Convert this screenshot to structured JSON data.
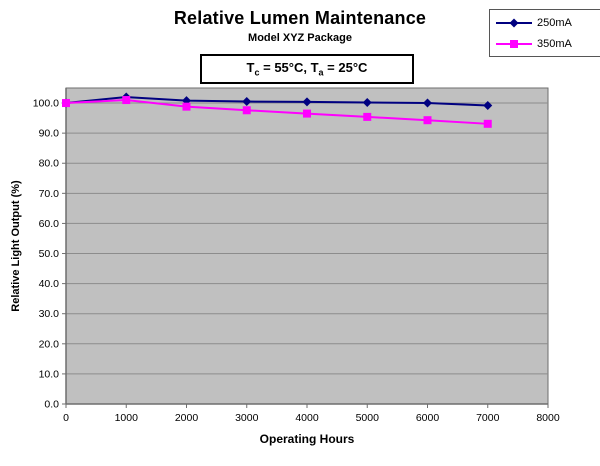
{
  "chart": {
    "title": "Relative Lumen Maintenance",
    "subtitle": "Model XYZ Package"
  },
  "annotation": {
    "t1": "T",
    "sub1": "c",
    "mid": " = 55°C, T",
    "sub2": "a",
    "end": " = 25°C"
  },
  "chart_data": {
    "type": "line",
    "title": "Relative Lumen Maintenance",
    "subtitle": "Model XYZ Package",
    "xlabel": "Operating Hours",
    "ylabel": "Relative Light Output (%)",
    "x": [
      0,
      1000,
      2000,
      3000,
      4000,
      5000,
      6000,
      7000
    ],
    "series": [
      {
        "name": "250mA",
        "color": "#000080",
        "marker": "diamond",
        "values": [
          100.0,
          102.0,
          100.8,
          100.5,
          100.4,
          100.2,
          100.0,
          99.2
        ]
      },
      {
        "name": "350mA",
        "color": "#ff00ff",
        "marker": "square",
        "values": [
          100.0,
          101.0,
          98.8,
          97.6,
          96.5,
          95.4,
          94.3,
          93.1
        ]
      }
    ],
    "xlim": [
      0,
      8000
    ],
    "ylim": [
      0,
      105
    ],
    "x_tick_values": [
      0,
      1000,
      2000,
      3000,
      4000,
      5000,
      6000,
      7000,
      8000
    ],
    "x_tick_labels": [
      "0",
      "1000",
      "2000",
      "3000",
      "4000",
      "5000",
      "6000",
      "7000",
      "8000"
    ],
    "y_tick_values": [
      0,
      10,
      20,
      30,
      40,
      50,
      60,
      70,
      80,
      90,
      100
    ],
    "y_tick_labels": [
      "0.0",
      "10.0",
      "20.0",
      "30.0",
      "40.0",
      "50.0",
      "60.0",
      "70.0",
      "80.0",
      "90.0",
      "100.0"
    ],
    "grid": true,
    "legend_position": "top-right",
    "plot_bg": "#c0c0c0",
    "gridline_color": "#8c8c8c",
    "axis_color": "#6e6e6e",
    "tick_label_color": "#000000"
  }
}
